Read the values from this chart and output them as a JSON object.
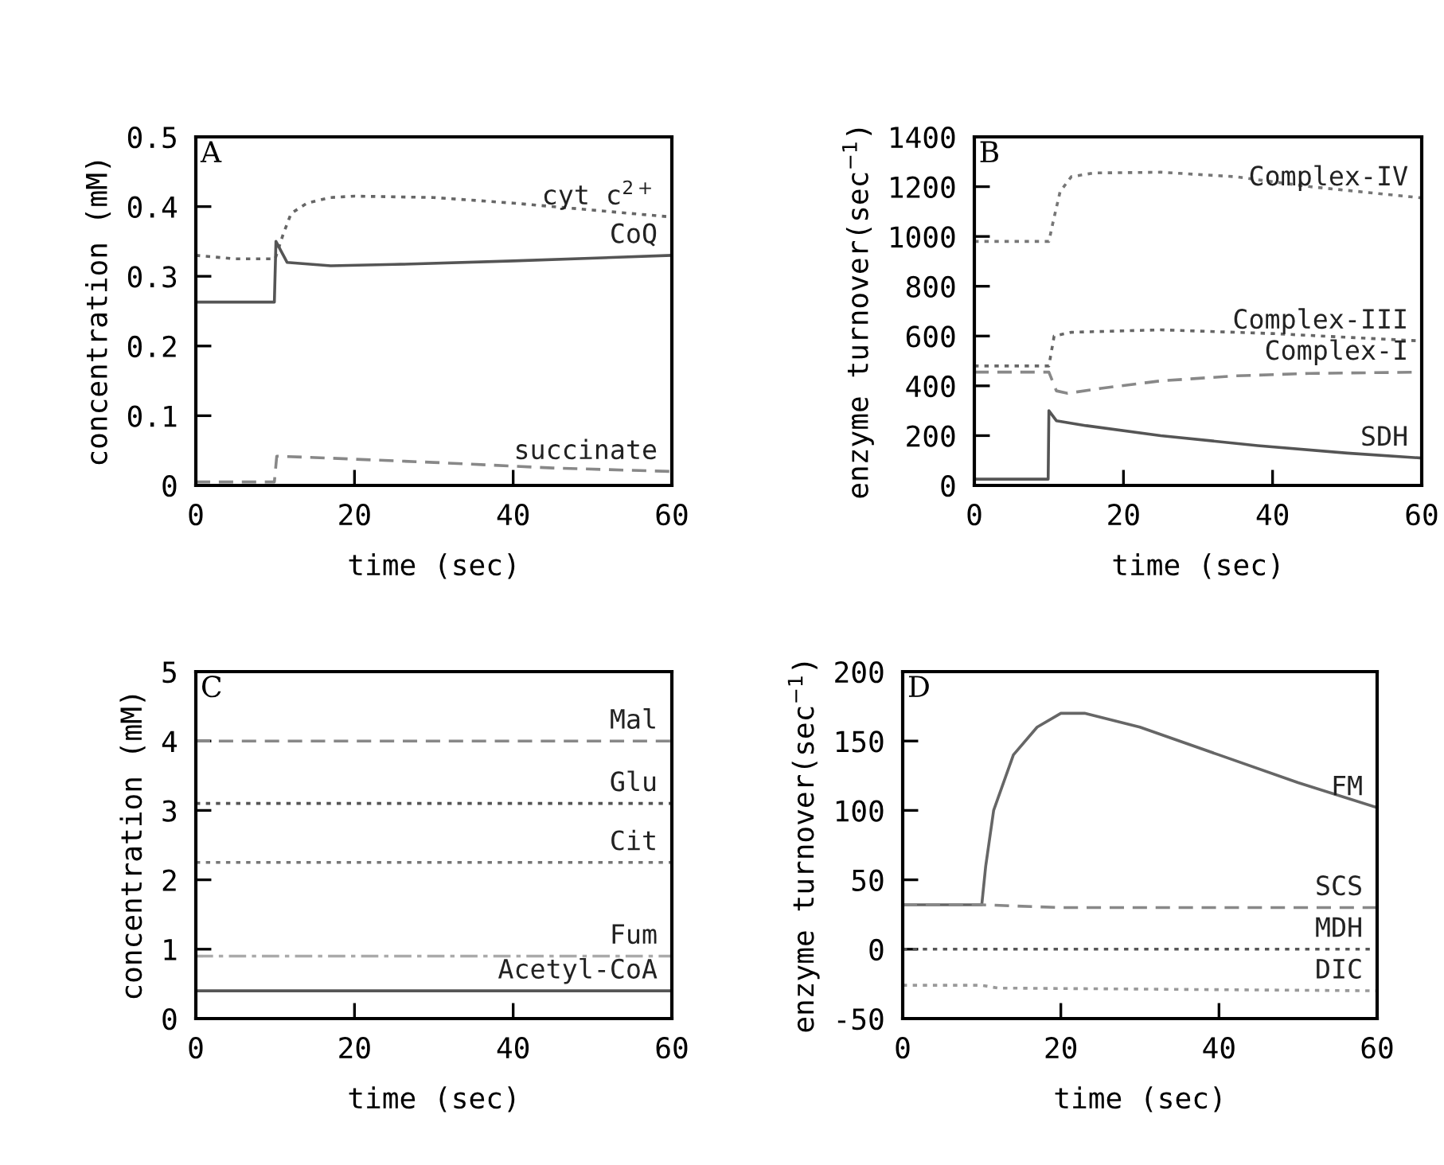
{
  "chart_data": [
    {
      "type": "line",
      "annotations": [
        "A"
      ],
      "xlabel": "time (sec)",
      "ylabel": "concentration (mM)",
      "xlim": [
        0,
        60
      ],
      "xticks": [
        0,
        20,
        40,
        60
      ],
      "ylim": [
        0,
        0.5
      ],
      "yticks": [
        0,
        0.1,
        0.2,
        0.3,
        0.4,
        0.5
      ],
      "legend": false,
      "grid": false,
      "series": [
        {
          "name": "cyt c$^{2+}$",
          "color": "#666666",
          "line_style": "dotted",
          "x": [
            0,
            5,
            10,
            11,
            12,
            14,
            17,
            20,
            30,
            40,
            50,
            60
          ],
          "values": [
            0.33,
            0.325,
            0.325,
            0.36,
            0.39,
            0.405,
            0.413,
            0.415,
            0.413,
            0.405,
            0.395,
            0.385
          ]
        },
        {
          "name": "CoQ",
          "color": "#555555",
          "line_style": "solid",
          "x": [
            0,
            9.9,
            10.1,
            11.5,
            17,
            25,
            40,
            60
          ],
          "values": [
            0.263,
            0.263,
            0.35,
            0.32,
            0.315,
            0.317,
            0.322,
            0.33
          ]
        },
        {
          "name": "succinate",
          "color": "#888888",
          "line_style": "dashed",
          "x": [
            0,
            9.9,
            10.2,
            15,
            30,
            45,
            60
          ],
          "values": [
            0.005,
            0.005,
            0.042,
            0.04,
            0.033,
            0.025,
            0.02
          ]
        }
      ]
    },
    {
      "type": "line",
      "annotations": [
        "B"
      ],
      "xlabel": "time (sec)",
      "ylabel": "enzyme turnover(sec$^{−1}$)",
      "xlim": [
        0,
        60
      ],
      "xticks": [
        0,
        20,
        40,
        60
      ],
      "ylim": [
        0,
        1400
      ],
      "yticks": [
        0,
        200,
        400,
        600,
        800,
        1000,
        1200,
        1400
      ],
      "legend": false,
      "grid": false,
      "series": [
        {
          "name": "Complex-IV",
          "color": "#777777",
          "line_style": "dotted",
          "x": [
            0,
            10,
            10.5,
            11.5,
            13,
            16,
            25,
            35,
            45,
            60
          ],
          "values": [
            980,
            980,
            1050,
            1180,
            1240,
            1255,
            1258,
            1240,
            1200,
            1155
          ]
        },
        {
          "name": "Complex-III",
          "color": "#666666",
          "line_style": "dotted",
          "x": [
            0,
            10,
            10.7,
            13,
            25,
            40,
            60
          ],
          "values": [
            480,
            480,
            600,
            615,
            625,
            610,
            580
          ]
        },
        {
          "name": "Complex-I",
          "color": "#888888",
          "line_style": "dashed",
          "x": [
            0,
            10,
            11,
            12.5,
            17,
            25,
            35,
            45,
            60
          ],
          "values": [
            455,
            455,
            380,
            370,
            390,
            420,
            440,
            450,
            455
          ]
        },
        {
          "name": "SDH",
          "color": "#555555",
          "line_style": "solid",
          "x": [
            0,
            9.9,
            10,
            11,
            15,
            25,
            38,
            50,
            60
          ],
          "values": [
            25,
            25,
            300,
            260,
            240,
            200,
            160,
            130,
            110
          ]
        }
      ]
    },
    {
      "type": "line",
      "annotations": [
        "C"
      ],
      "xlabel": "time (sec)",
      "ylabel": "concentration (mM)",
      "xlim": [
        0,
        60
      ],
      "xticks": [
        0,
        20,
        40,
        60
      ],
      "ylim": [
        0,
        5
      ],
      "yticks": [
        0,
        1,
        2,
        3,
        4,
        5
      ],
      "legend": false,
      "grid": false,
      "series": [
        {
          "name": "Mal",
          "color": "#888888",
          "line_style": "dashed",
          "x": [
            0,
            60
          ],
          "values": [
            4.0,
            4.0
          ]
        },
        {
          "name": "Glu",
          "color": "#555555",
          "line_style": "dotted",
          "x": [
            0,
            60
          ],
          "values": [
            3.1,
            3.1
          ]
        },
        {
          "name": "Cit",
          "color": "#777777",
          "line_style": "dotted",
          "x": [
            0,
            60
          ],
          "values": [
            2.25,
            2.25
          ]
        },
        {
          "name": "Fum",
          "color": "#aaaaaa",
          "line_style": "dashdot",
          "x": [
            0,
            60
          ],
          "values": [
            0.9,
            0.9
          ]
        },
        {
          "name": "Acetyl-CoA",
          "color": "#555555",
          "line_style": "solid",
          "x": [
            0,
            60
          ],
          "values": [
            0.4,
            0.4
          ]
        }
      ]
    },
    {
      "type": "line",
      "annotations": [
        "D"
      ],
      "xlabel": "time (sec)",
      "ylabel": "enzyme turnover(sec$^{−1}$)",
      "xlim": [
        0,
        60
      ],
      "xticks": [
        0,
        20,
        40,
        60
      ],
      "ylim": [
        -50,
        200
      ],
      "yticks": [
        -50,
        0,
        50,
        100,
        150,
        200
      ],
      "legend": false,
      "grid": false,
      "series": [
        {
          "name": "FM",
          "color": "#666666",
          "line_style": "solid",
          "x": [
            0,
            10,
            10.5,
            11.5,
            14,
            17,
            20,
            23,
            30,
            40,
            50,
            60
          ],
          "values": [
            32,
            32,
            60,
            100,
            140,
            160,
            170,
            170,
            160,
            140,
            120,
            102
          ]
        },
        {
          "name": "SCS",
          "color": "#888888",
          "line_style": "dashed",
          "x": [
            0,
            10,
            20,
            60
          ],
          "values": [
            32,
            32,
            30,
            30
          ]
        },
        {
          "name": "MDH",
          "color": "#555555",
          "line_style": "dotted",
          "x": [
            0,
            60
          ],
          "values": [
            0,
            0
          ]
        },
        {
          "name": "DIC",
          "color": "#999999",
          "line_style": "dotted",
          "x": [
            0,
            10,
            12,
            60
          ],
          "values": [
            -26,
            -26,
            -28,
            -30
          ]
        }
      ]
    }
  ]
}
